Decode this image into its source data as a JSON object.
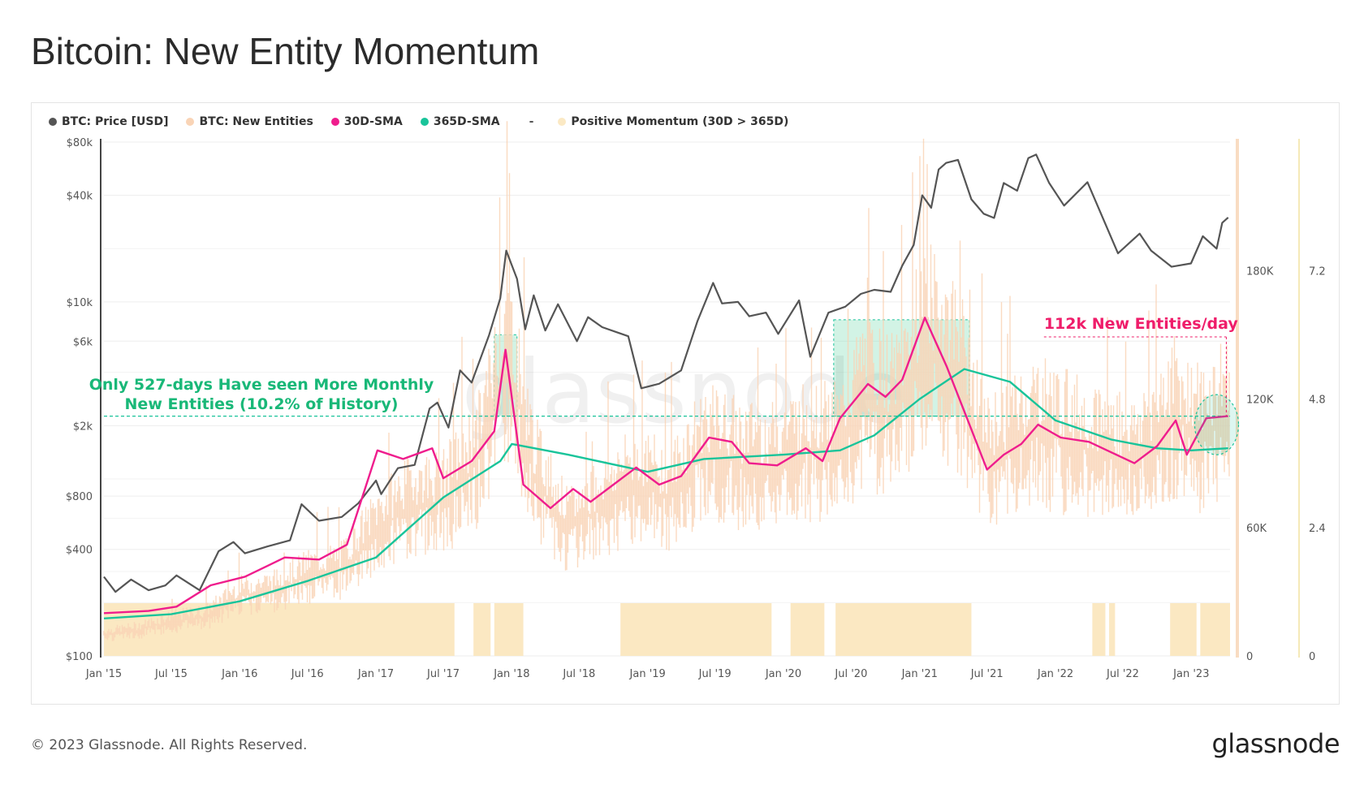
{
  "page": {
    "title": "Bitcoin: New Entity Momentum",
    "copyright": "© 2023 Glassnode. All Rights Reserved.",
    "brand": "glassnode",
    "watermark": "glassnode"
  },
  "legend": [
    {
      "label": "BTC: Price [USD]",
      "color": "#555555",
      "marker": "dot"
    },
    {
      "label": "BTC: New Entities",
      "color": "#f9d4b6",
      "marker": "dot"
    },
    {
      "label": "30D-SMA",
      "color": "#ef1d8d",
      "marker": "dot"
    },
    {
      "label": "365D-SMA",
      "color": "#19c49a",
      "marker": "dot"
    },
    {
      "label": "-",
      "color": "#555555",
      "marker": "dash"
    },
    {
      "label": "Positive Momentum (30D > 365D)",
      "color": "#fbe9c4",
      "marker": "dot"
    }
  ],
  "chart_data": {
    "type": "line",
    "title": "Bitcoin: New Entity Momentum",
    "x_ticks": [
      "Jan '15",
      "Jul '15",
      "Jan '16",
      "Jul '16",
      "Jan '17",
      "Jul '17",
      "Jan '18",
      "Jul '18",
      "Jan '19",
      "Jul '19",
      "Jan '20",
      "Jul '20",
      "Jan '21",
      "Jul '21",
      "Jan '22",
      "Jul '22",
      "Jan '23"
    ],
    "x_range": [
      "2015-01-01",
      "2023-04-15"
    ],
    "y_left": {
      "label": "",
      "scale": "log",
      "range": [
        100,
        80000
      ],
      "ticks": [
        "$100",
        "$400",
        "$800",
        "$2k",
        "$6k",
        "$10k",
        "$40k",
        "$80k"
      ]
    },
    "y_right_1": {
      "range": [
        0,
        240000
      ],
      "ticks": [
        "0",
        "60K",
        "120K",
        "180K"
      ]
    },
    "y_right_2": {
      "range": [
        0,
        9.6
      ],
      "ticks": [
        "0",
        "2.4",
        "4.8",
        "7.2"
      ]
    },
    "series": [
      {
        "name": "BTC: Price [USD]",
        "color": "#555555",
        "axis": "left",
        "points": [
          [
            "2015-01-01",
            280
          ],
          [
            "2015-02-01",
            230
          ],
          [
            "2015-03-15",
            270
          ],
          [
            "2015-05-01",
            235
          ],
          [
            "2015-06-15",
            250
          ],
          [
            "2015-07-15",
            285
          ],
          [
            "2015-09-15",
            235
          ],
          [
            "2015-11-05",
            390
          ],
          [
            "2015-12-15",
            440
          ],
          [
            "2016-01-15",
            380
          ],
          [
            "2016-03-15",
            415
          ],
          [
            "2016-05-15",
            450
          ],
          [
            "2016-06-15",
            720
          ],
          [
            "2016-08-01",
            580
          ],
          [
            "2016-10-01",
            610
          ],
          [
            "2016-11-15",
            730
          ],
          [
            "2017-01-01",
            980
          ],
          [
            "2017-01-15",
            820
          ],
          [
            "2017-03-01",
            1150
          ],
          [
            "2017-04-15",
            1200
          ],
          [
            "2017-05-25",
            2500
          ],
          [
            "2017-06-15",
            2700
          ],
          [
            "2017-07-15",
            1950
          ],
          [
            "2017-08-15",
            4100
          ],
          [
            "2017-09-15",
            3500
          ],
          [
            "2017-11-01",
            6500
          ],
          [
            "2017-12-01",
            10500
          ],
          [
            "2017-12-17",
            19500
          ],
          [
            "2018-01-15",
            13500
          ],
          [
            "2018-02-06",
            7000
          ],
          [
            "2018-03-01",
            10900
          ],
          [
            "2018-04-01",
            6900
          ],
          [
            "2018-05-05",
            9700
          ],
          [
            "2018-06-25",
            6000
          ],
          [
            "2018-07-25",
            8200
          ],
          [
            "2018-09-01",
            7200
          ],
          [
            "2018-11-10",
            6400
          ],
          [
            "2018-12-15",
            3250
          ],
          [
            "2019-02-01",
            3450
          ],
          [
            "2019-04-01",
            4100
          ],
          [
            "2019-05-15",
            7800
          ],
          [
            "2019-06-26",
            12800
          ],
          [
            "2019-07-20",
            9800
          ],
          [
            "2019-09-01",
            10000
          ],
          [
            "2019-10-01",
            8300
          ],
          [
            "2019-11-15",
            8700
          ],
          [
            "2019-12-18",
            6600
          ],
          [
            "2020-02-12",
            10200
          ],
          [
            "2020-03-13",
            4900
          ],
          [
            "2020-05-01",
            8700
          ],
          [
            "2020-06-15",
            9400
          ],
          [
            "2020-07-27",
            11100
          ],
          [
            "2020-09-01",
            11700
          ],
          [
            "2020-10-15",
            11400
          ],
          [
            "2020-11-15",
            16000
          ],
          [
            "2020-12-16",
            21000
          ],
          [
            "2021-01-08",
            40000
          ],
          [
            "2021-02-01",
            34000
          ],
          [
            "2021-02-21",
            56000
          ],
          [
            "2021-03-13",
            61000
          ],
          [
            "2021-04-14",
            63500
          ],
          [
            "2021-05-20",
            38000
          ],
          [
            "2021-06-22",
            31500
          ],
          [
            "2021-07-20",
            29800
          ],
          [
            "2021-08-15",
            47000
          ],
          [
            "2021-09-20",
            42500
          ],
          [
            "2021-10-20",
            65000
          ],
          [
            "2021-11-10",
            68000
          ],
          [
            "2021-12-15",
            47000
          ],
          [
            "2022-01-24",
            35000
          ],
          [
            "2022-03-28",
            47500
          ],
          [
            "2022-05-12",
            28500
          ],
          [
            "2022-06-18",
            18800
          ],
          [
            "2022-08-15",
            24300
          ],
          [
            "2022-09-15",
            19500
          ],
          [
            "2022-11-09",
            15800
          ],
          [
            "2022-12-31",
            16500
          ],
          [
            "2023-02-01",
            23500
          ],
          [
            "2023-03-10",
            20000
          ],
          [
            "2023-03-25",
            28000
          ],
          [
            "2023-04-10",
            30000
          ]
        ]
      },
      {
        "name": "BTC: New Entities",
        "color": "#f9d4b6",
        "axis": "right_1",
        "points": [
          [
            "2015-01-01",
            10000
          ],
          [
            "2015-04-01",
            12000
          ],
          [
            "2015-07-01",
            16000
          ],
          [
            "2015-10-01",
            18000
          ],
          [
            "2016-01-01",
            28000
          ],
          [
            "2016-04-01",
            30000
          ],
          [
            "2016-07-01",
            37000
          ],
          [
            "2016-10-01",
            40000
          ],
          [
            "2017-01-01",
            58000
          ],
          [
            "2017-04-01",
            70000
          ],
          [
            "2017-07-01",
            72000
          ],
          [
            "2017-10-01",
            90000
          ],
          [
            "2017-12-20",
            140000
          ],
          [
            "2018-03-01",
            85000
          ],
          [
            "2018-06-01",
            58000
          ],
          [
            "2018-09-01",
            70000
          ],
          [
            "2018-12-01",
            80000
          ],
          [
            "2019-03-01",
            74000
          ],
          [
            "2019-06-01",
            95000
          ],
          [
            "2019-09-01",
            90000
          ],
          [
            "2019-12-01",
            88000
          ],
          [
            "2020-03-01",
            96000
          ],
          [
            "2020-06-01",
            95000
          ],
          [
            "2020-08-01",
            118000
          ],
          [
            "2020-11-01",
            112000
          ],
          [
            "2021-01-15",
            145000
          ],
          [
            "2021-04-15",
            130000
          ],
          [
            "2021-07-01",
            90000
          ],
          [
            "2021-09-01",
            97000
          ],
          [
            "2021-11-15",
            105000
          ],
          [
            "2022-02-01",
            100000
          ],
          [
            "2022-05-01",
            95000
          ],
          [
            "2022-08-01",
            90000
          ],
          [
            "2022-11-15",
            112000
          ],
          [
            "2023-02-01",
            100000
          ],
          [
            "2023-04-10",
            112000
          ]
        ]
      },
      {
        "name": "30D-SMA",
        "color": "#ef1d8d",
        "axis": "right_1",
        "points": [
          [
            "2015-01-01",
            20000
          ],
          [
            "2015-05-01",
            21000
          ],
          [
            "2015-07-15",
            23000
          ],
          [
            "2015-10-15",
            33000
          ],
          [
            "2016-01-15",
            37000
          ],
          [
            "2016-03-15",
            42000
          ],
          [
            "2016-05-01",
            46000
          ],
          [
            "2016-08-01",
            45000
          ],
          [
            "2016-10-15",
            52000
          ],
          [
            "2017-01-05",
            96000
          ],
          [
            "2017-03-15",
            92000
          ],
          [
            "2017-06-01",
            97000
          ],
          [
            "2017-07-01",
            83000
          ],
          [
            "2017-09-15",
            91000
          ],
          [
            "2017-11-15",
            105000
          ],
          [
            "2017-12-15",
            143000
          ],
          [
            "2018-02-01",
            80000
          ],
          [
            "2018-04-15",
            69000
          ],
          [
            "2018-06-15",
            78000
          ],
          [
            "2018-08-01",
            72000
          ],
          [
            "2018-10-01",
            80000
          ],
          [
            "2018-12-01",
            88000
          ],
          [
            "2019-02-01",
            80000
          ],
          [
            "2019-04-01",
            84000
          ],
          [
            "2019-06-15",
            102000
          ],
          [
            "2019-08-15",
            100000
          ],
          [
            "2019-10-01",
            90000
          ],
          [
            "2019-12-15",
            89000
          ],
          [
            "2020-03-01",
            97000
          ],
          [
            "2020-04-15",
            91000
          ],
          [
            "2020-06-01",
            111000
          ],
          [
            "2020-08-15",
            127000
          ],
          [
            "2020-10-01",
            121000
          ],
          [
            "2020-11-15",
            129000
          ],
          [
            "2021-01-15",
            158000
          ],
          [
            "2021-03-15",
            135000
          ],
          [
            "2021-05-15",
            108000
          ],
          [
            "2021-07-01",
            87000
          ],
          [
            "2021-08-15",
            94000
          ],
          [
            "2021-10-01",
            99000
          ],
          [
            "2021-11-15",
            108000
          ],
          [
            "2022-01-15",
            102000
          ],
          [
            "2022-04-01",
            100000
          ],
          [
            "2022-06-01",
            95000
          ],
          [
            "2022-08-01",
            90000
          ],
          [
            "2022-10-01",
            98000
          ],
          [
            "2022-11-20",
            110000
          ],
          [
            "2022-12-20",
            94000
          ],
          [
            "2023-02-10",
            111000
          ],
          [
            "2023-04-10",
            112000
          ]
        ]
      },
      {
        "name": "365D-SMA",
        "color": "#19c49a",
        "axis": "right_1",
        "points": [
          [
            "2015-01-01",
            17500
          ],
          [
            "2015-07-01",
            19500
          ],
          [
            "2016-01-01",
            25500
          ],
          [
            "2016-07-01",
            35000
          ],
          [
            "2017-01-01",
            46000
          ],
          [
            "2017-07-01",
            74000
          ],
          [
            "2017-12-01",
            91000
          ],
          [
            "2018-01-01",
            99000
          ],
          [
            "2018-06-01",
            94000
          ],
          [
            "2019-01-01",
            86000
          ],
          [
            "2019-06-01",
            92000
          ],
          [
            "2020-01-01",
            94000
          ],
          [
            "2020-06-01",
            96000
          ],
          [
            "2020-09-01",
            103000
          ],
          [
            "2021-01-01",
            120000
          ],
          [
            "2021-05-01",
            134000
          ],
          [
            "2021-09-01",
            128000
          ],
          [
            "2022-01-01",
            110000
          ],
          [
            "2022-06-01",
            101000
          ],
          [
            "2022-10-01",
            97000
          ],
          [
            "2023-01-01",
            96000
          ],
          [
            "2023-04-10",
            97000
          ]
        ]
      }
    ],
    "positive_momentum_periods": [
      [
        "2015-01-01",
        "2017-07-31"
      ],
      [
        "2017-09-20",
        "2017-11-05"
      ],
      [
        "2017-11-15",
        "2018-02-01"
      ],
      [
        "2018-10-20",
        "2019-11-30"
      ],
      [
        "2020-01-20",
        "2020-04-20"
      ],
      [
        "2020-05-20",
        "2021-05-20"
      ],
      [
        "2022-04-10",
        "2022-05-15"
      ],
      [
        "2022-05-25",
        "2022-06-10"
      ],
      [
        "2022-11-05",
        "2023-01-15"
      ],
      [
        "2023-01-25",
        "2023-04-15"
      ]
    ],
    "highlight_boxes": [
      {
        "from": "2017-11-15",
        "to": "2018-01-15",
        "min": 112000,
        "max": 150000
      },
      {
        "from": "2020-05-15",
        "to": "2021-05-15",
        "min": 112000,
        "max": 157000
      }
    ],
    "threshold_line": {
      "value": 112000,
      "color": "#19c49a",
      "style": "dashed"
    },
    "annotations": [
      {
        "text_lines": [
          "Only 527-days Have seen More Monthly",
          "New Entities (10.2% of History)"
        ],
        "color": "#19b878"
      },
      {
        "text": "112k New Entities/day",
        "color": "#ef1d6a"
      }
    ]
  }
}
